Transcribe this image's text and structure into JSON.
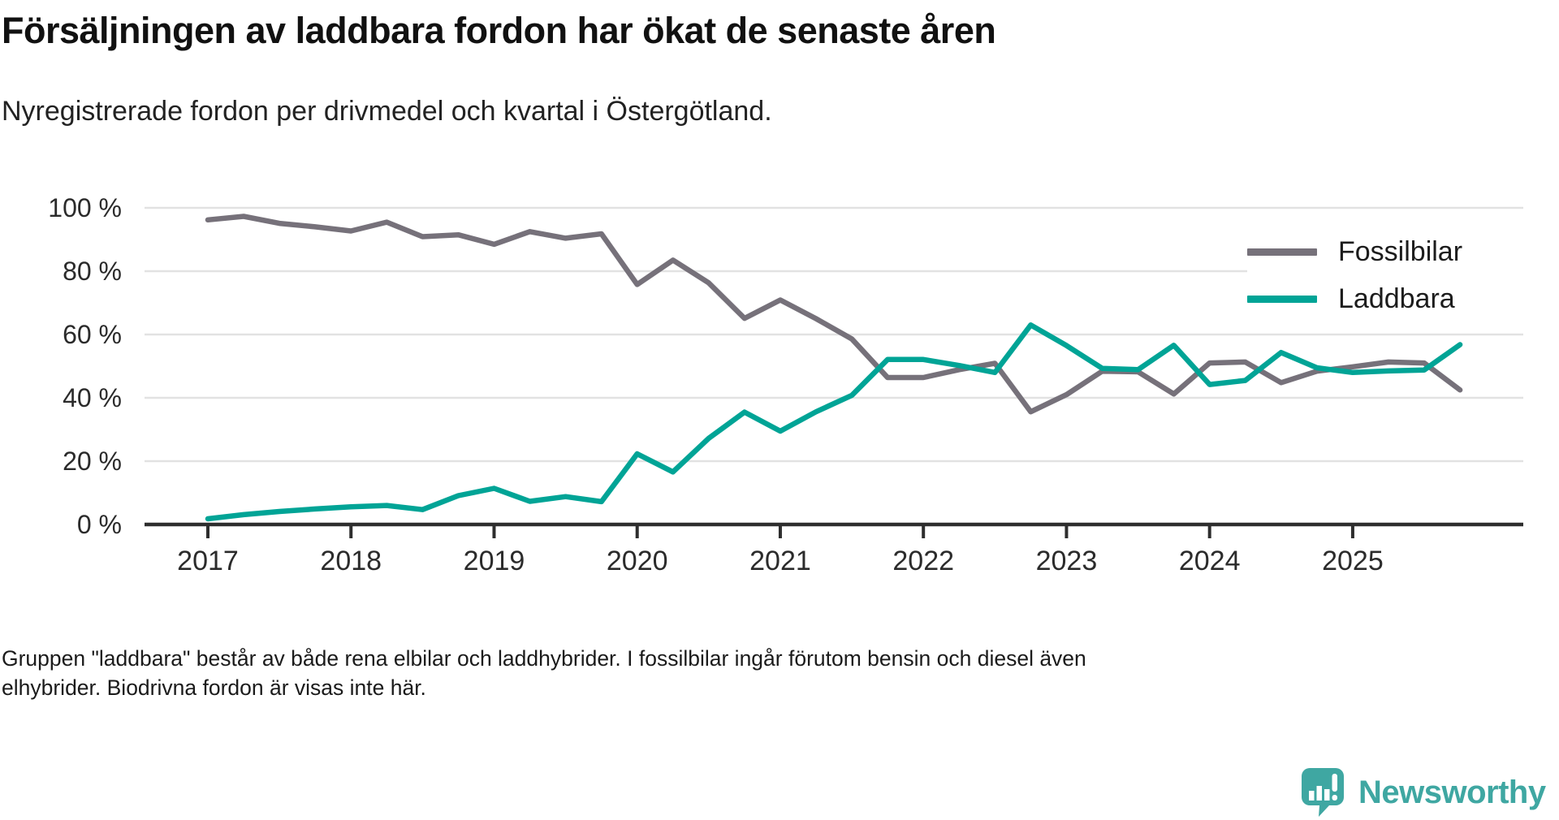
{
  "title": "Försäljningen av laddbara fordon har ökat de senaste åren",
  "subtitle": "Nyregistrerade fordon per drivmedel och kvartal i Östergötland.",
  "legend": {
    "items": [
      {
        "label": "Fossilbilar",
        "color": "#76717a"
      },
      {
        "label": "Laddbara",
        "color": "#00a496"
      }
    ]
  },
  "footnote": {
    "line1": "Gruppen \"laddbara\" består av både rena elbilar och laddhybrider. I fossilbilar ingår förutom bensin och diesel även",
    "line2": "elhybrider. Biodrivna fordon är visas inte här."
  },
  "logo": {
    "text": "Newsworthy",
    "color": "#3fa7a2"
  },
  "colors": {
    "grid": "#e2e2e2",
    "axis": "#2e2e2e",
    "tick_label": "#2b2b2b"
  },
  "chart_data": {
    "type": "line",
    "title": "Försäljningen av laddbara fordon har ökat de senaste åren",
    "subtitle": "Nyregistrerade fordon per drivmedel och kvartal i Östergötland.",
    "xlabel": "",
    "ylabel": "",
    "ylim": [
      0,
      100
    ],
    "grid": true,
    "legend_position": "top-right",
    "y_ticks": [
      0,
      20,
      40,
      60,
      80,
      100
    ],
    "y_tick_suffix": " %",
    "x_tick_years": [
      2017,
      2018,
      2019,
      2020,
      2021,
      2022,
      2023,
      2024,
      2025
    ],
    "x": [
      "2017Q1",
      "2017Q2",
      "2017Q3",
      "2017Q4",
      "2018Q1",
      "2018Q2",
      "2018Q3",
      "2018Q4",
      "2019Q1",
      "2019Q2",
      "2019Q3",
      "2019Q4",
      "2020Q1",
      "2020Q2",
      "2020Q3",
      "2020Q4",
      "2021Q1",
      "2021Q2",
      "2021Q3",
      "2021Q4",
      "2022Q1",
      "2022Q2",
      "2022Q3",
      "2022Q4",
      "2023Q1",
      "2023Q2",
      "2023Q3",
      "2023Q4",
      "2024Q1",
      "2024Q2",
      "2024Q3",
      "2024Q4",
      "2025Q1",
      "2025Q2",
      "2025Q3",
      "2025Q4"
    ],
    "series": [
      {
        "name": "Fossilbilar",
        "color": "#76717a",
        "values": [
          96.2,
          97.3,
          95.1,
          94.0,
          92.7,
          95.5,
          90.9,
          91.5,
          88.5,
          92.5,
          90.4,
          91.8,
          75.8,
          83.5,
          76.3,
          65.1,
          70.9,
          65.0,
          58.6,
          46.4,
          46.4,
          48.9,
          50.9,
          35.6,
          41.0,
          48.4,
          48.2,
          41.2,
          51.0,
          51.3,
          44.8,
          48.4,
          49.8,
          51.3,
          51.0,
          42.5
        ]
      },
      {
        "name": "Laddbara",
        "color": "#00a496",
        "values": [
          1.8,
          3.1,
          4.1,
          4.9,
          5.6,
          6.0,
          4.7,
          9.1,
          11.4,
          7.3,
          8.8,
          7.2,
          22.3,
          16.6,
          27.2,
          35.5,
          29.5,
          35.6,
          40.8,
          52.1,
          52.1,
          50.2,
          48.0,
          63.0,
          56.5,
          49.3,
          48.9,
          56.6,
          44.2,
          45.5,
          54.3,
          49.5,
          48.0,
          48.5,
          48.8,
          56.8
        ]
      }
    ]
  }
}
